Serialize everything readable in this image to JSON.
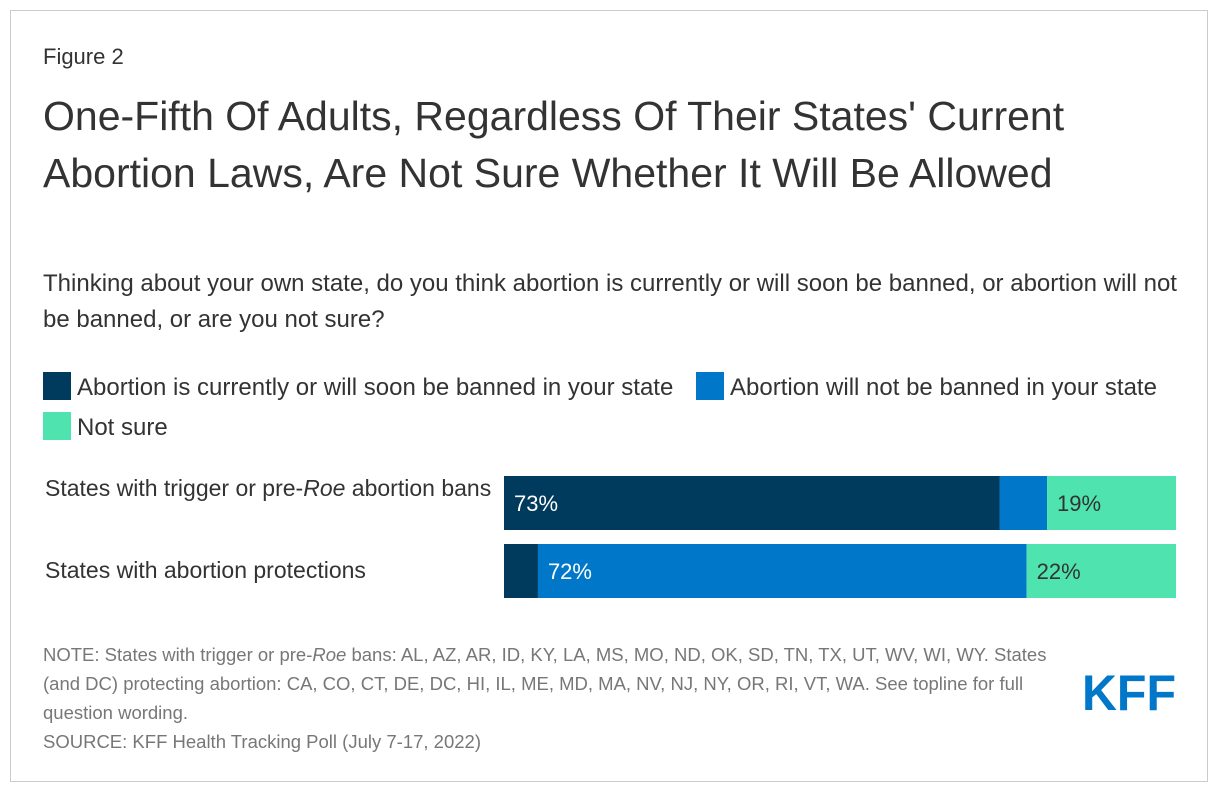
{
  "figure_label": "Figure 2",
  "title": "One-Fifth Of Adults, Regardless Of Their States' Current Abortion Laws, Are Not Sure Whether It Will Be Allowed",
  "subtitle": "Thinking about your own state, do you think abortion is currently or will soon be banned, or abortion will not be banned, or are you not sure?",
  "legend": [
    {
      "label": "Abortion is currently or will soon be banned in your state",
      "color": "#003a5d"
    },
    {
      "label": "Abortion will not be banned in your state",
      "color": "#0077c8"
    },
    {
      "label": "Not sure",
      "color": "#4fe3b0"
    }
  ],
  "chart_data": {
    "type": "bar",
    "orientation": "horizontal",
    "stacked": true,
    "categories": [
      "States with trigger or pre-Roe abortion bans",
      "States with abortion protections"
    ],
    "category_labels": [
      {
        "prefix": "States with trigger or pre-",
        "italic": "Roe",
        "suffix": " abortion bans"
      },
      {
        "prefix": "States with abortion protections",
        "italic": "",
        "suffix": ""
      }
    ],
    "series": [
      {
        "name": "Abortion is currently or will soon be banned in your state",
        "color": "#003a5d",
        "values": [
          73,
          5
        ],
        "labels": [
          "73%",
          ""
        ]
      },
      {
        "name": "Abortion will not be banned in your state",
        "color": "#0077c8",
        "values": [
          7,
          72
        ],
        "labels": [
          "",
          "72%"
        ]
      },
      {
        "name": "Not sure",
        "color": "#4fe3b0",
        "values": [
          19,
          22
        ],
        "labels": [
          "19%",
          "22%"
        ]
      }
    ],
    "xlim": [
      0,
      99
    ],
    "legend_position": "top"
  },
  "note": {
    "prefix": "NOTE: States with trigger or pre-",
    "italic": "Roe",
    "suffix": " bans: AL, AZ, AR, ID, KY, LA, MS, MO, ND, OK, SD, TN, TX, UT, WV, WI, WY. States (and DC) protecting abortion: CA, CO, CT, DE, DC, HI, IL, ME, MD, MA, NV, NJ, NY, OR, RI, VT, WA. See topline for full question wording."
  },
  "source": "SOURCE: KFF Health Tracking Poll (July 7-17, 2022)",
  "logo_text": "KFF",
  "logo_color": "#0077c8"
}
